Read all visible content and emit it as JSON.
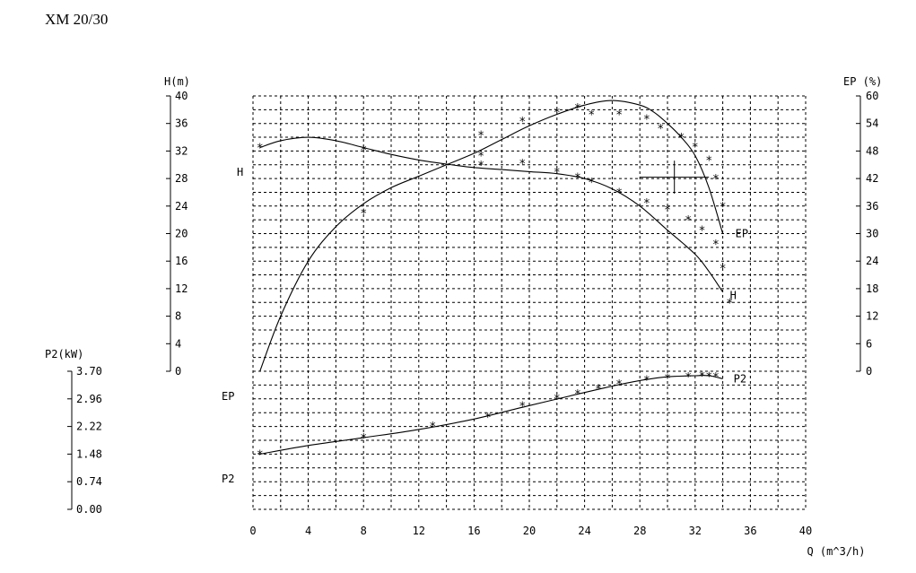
{
  "title": "XM 20/30",
  "chart_data": {
    "type": "line",
    "xlabel": "Q (m^3/h)",
    "xlim": [
      0,
      40
    ],
    "x_ticks": [
      "0",
      "4",
      "8",
      "12",
      "16",
      "20",
      "24",
      "28",
      "32",
      "36",
      "40"
    ],
    "axes": {
      "H": {
        "label": "H(m)",
        "ylim": [
          0,
          40
        ],
        "ticks": [
          "0",
          "4",
          "8",
          "12",
          "16",
          "20",
          "24",
          "28",
          "32",
          "36",
          "40"
        ]
      },
      "EP": {
        "label": "EP (%)",
        "ylim": [
          0,
          60
        ],
        "ticks": [
          "0",
          "6",
          "12",
          "18",
          "24",
          "30",
          "36",
          "42",
          "48",
          "54",
          "60"
        ]
      },
      "P2": {
        "label": "P2(kW)",
        "ylim": [
          0.0,
          3.7
        ],
        "ticks": [
          "0.00",
          "0.74",
          "1.48",
          "2.22",
          "2.96",
          "3.70"
        ]
      }
    },
    "series": [
      {
        "name": "H",
        "axis": "H",
        "end_label": "H",
        "start_label": "H",
        "x": [
          0.5,
          2,
          4,
          6,
          8,
          10,
          12,
          14,
          16,
          18,
          20,
          22,
          24,
          26,
          28,
          30,
          32,
          33,
          34
        ],
        "y": [
          32.5,
          33.5,
          34,
          33.5,
          32.5,
          31.5,
          30.7,
          30.1,
          29.6,
          29.3,
          29.0,
          28.7,
          28.0,
          26.5,
          24.0,
          20.5,
          17.0,
          14.5,
          11.5
        ],
        "points_x": [
          0.5,
          8,
          16.5,
          19.5,
          22,
          23.5,
          24.5,
          26.5,
          28.5,
          30,
          31.5,
          32.5,
          33.5,
          34,
          34.5
        ],
        "points_y": [
          32.5,
          32.2,
          30.0,
          30.2,
          29.0,
          28.2,
          27.5,
          26.0,
          24.5,
          23.5,
          22.0,
          20.5,
          18.5,
          15.0,
          10.0
        ]
      },
      {
        "name": "EP",
        "axis": "EP",
        "end_label": "EP",
        "start_label": "EP",
        "x": [
          0.5,
          2,
          4,
          6,
          8,
          10,
          12,
          14,
          16,
          18,
          20,
          22,
          24,
          26,
          28,
          29,
          30,
          31,
          32,
          33,
          34
        ],
        "y": [
          0,
          12,
          24,
          31.5,
          36.5,
          40,
          42.5,
          45,
          47.5,
          50.5,
          53.5,
          56,
          58,
          59,
          58,
          56.5,
          54,
          51,
          47,
          40,
          30
        ],
        "points_x": [
          8,
          16.5,
          16.5,
          19.5,
          22,
          23.5,
          24.5,
          26.5,
          28.5,
          29.5,
          31,
          32,
          33,
          33.5,
          34
        ],
        "points_y": [
          34.5,
          51.5,
          47,
          54.5,
          56.5,
          57.5,
          56,
          56,
          55,
          53,
          51,
          49,
          46,
          42,
          36
        ]
      },
      {
        "name": "P2",
        "axis": "P2",
        "end_label": "P2",
        "start_label": "P2",
        "x": [
          0.5,
          4,
          8,
          12,
          16,
          20,
          24,
          26,
          28,
          30,
          32,
          33,
          34
        ],
        "y": [
          1.48,
          1.71,
          1.92,
          2.14,
          2.42,
          2.78,
          3.13,
          3.3,
          3.45,
          3.55,
          3.58,
          3.58,
          3.5
        ],
        "points_x": [
          0.5,
          8,
          13,
          17,
          19.5,
          22,
          23.5,
          25,
          26.5,
          28.5,
          30,
          31.5,
          32.5,
          33,
          33.5
        ],
        "points_y": [
          1.48,
          1.92,
          2.23,
          2.48,
          2.78,
          2.98,
          3.1,
          3.23,
          3.36,
          3.47,
          3.52,
          3.56,
          3.58,
          3.57,
          3.55
        ]
      }
    ],
    "operating_point": {
      "x": 30.5,
      "y": 28.2,
      "axis": "H",
      "dx": 2.5,
      "dy": 2.4
    },
    "grid": true
  }
}
